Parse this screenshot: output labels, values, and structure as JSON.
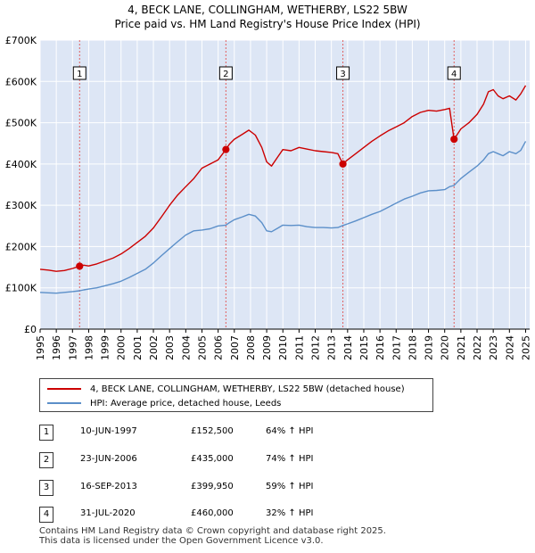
{
  "header": {
    "title_line1": "4, BECK LANE, COLLINGHAM, WETHERBY, LS22 5BW",
    "title_line2": "Price paid vs. HM Land Registry's House Price Index (HPI)"
  },
  "colors": {
    "property": "#cc0000",
    "hpi": "#5b8fc9",
    "shade": "#dde6f5",
    "grid": "#ffffff",
    "marker_line": "#e06060"
  },
  "chart_data": {
    "type": "line",
    "title": "4, BECK LANE, COLLINGHAM, WETHERBY, LS22 5BW — Price paid vs. HM Land Registry's House Price Index (HPI)",
    "xlim": [
      1995,
      2025.25
    ],
    "ylim": [
      0,
      700000
    ],
    "y_ticks": [
      0,
      100000,
      200000,
      300000,
      400000,
      500000,
      600000,
      700000
    ],
    "y_tick_labels": [
      "£0",
      "£100K",
      "£200K",
      "£300K",
      "£400K",
      "£500K",
      "£600K",
      "£700K"
    ],
    "x_ticks": [
      1995,
      1996,
      1997,
      1998,
      1999,
      2000,
      2001,
      2002,
      2003,
      2004,
      2005,
      2006,
      2007,
      2008,
      2009,
      2010,
      2011,
      2012,
      2013,
      2014,
      2015,
      2016,
      2017,
      2018,
      2019,
      2020,
      2021,
      2022,
      2023,
      2024,
      2025
    ],
    "grid": true,
    "series": [
      {
        "name": "4, BECK LANE, COLLINGHAM, WETHERBY, LS22 5BW (detached house)",
        "x": [
          1995,
          1995.5,
          1996,
          1996.5,
          1997,
          1997.44,
          1997.7,
          1998,
          1998.5,
          1999,
          1999.5,
          2000,
          2000.5,
          2001,
          2001.5,
          2002,
          2002.5,
          2003,
          2003.5,
          2004,
          2004.5,
          2005,
          2005.5,
          2006,
          2006.48,
          2006.7,
          2007,
          2007.5,
          2007.9,
          2008.3,
          2008.7,
          2009,
          2009.3,
          2009.7,
          2010,
          2010.5,
          2011,
          2011.5,
          2012,
          2012.5,
          2013,
          2013.4,
          2013.71,
          2014,
          2014.5,
          2015,
          2015.5,
          2016,
          2016.5,
          2017,
          2017.5,
          2018,
          2018.5,
          2019,
          2019.5,
          2020,
          2020.3,
          2020.58,
          2020.75,
          2021,
          2021.5,
          2022,
          2022.4,
          2022.7,
          2023,
          2023.3,
          2023.6,
          2024,
          2024.4,
          2024.7,
          2025
        ],
        "y": [
          145000,
          143000,
          140000,
          142000,
          147000,
          152500,
          155000,
          153000,
          158000,
          165000,
          172000,
          182000,
          195000,
          210000,
          225000,
          245000,
          272000,
          300000,
          325000,
          345000,
          365000,
          390000,
          400000,
          410000,
          435000,
          448000,
          460000,
          472000,
          482000,
          470000,
          440000,
          405000,
          395000,
          418000,
          435000,
          432000,
          440000,
          436000,
          432000,
          430000,
          428000,
          425000,
          399950,
          410000,
          425000,
          440000,
          455000,
          468000,
          480000,
          490000,
          500000,
          515000,
          525000,
          530000,
          528000,
          532000,
          535000,
          460000,
          470000,
          485000,
          500000,
          520000,
          545000,
          575000,
          580000,
          565000,
          558000,
          565000,
          555000,
          570000,
          590000
        ]
      },
      {
        "name": "HPI: Average price, detached house, Leeds",
        "x": [
          1995,
          1995.5,
          1996,
          1996.5,
          1997,
          1997.44,
          1997.7,
          1998,
          1998.5,
          1999,
          1999.5,
          2000,
          2000.5,
          2001,
          2001.5,
          2002,
          2002.5,
          2003,
          2003.5,
          2004,
          2004.5,
          2005,
          2005.5,
          2006,
          2006.48,
          2006.7,
          2007,
          2007.5,
          2007.9,
          2008.3,
          2008.7,
          2009,
          2009.3,
          2009.7,
          2010,
          2010.5,
          2011,
          2011.5,
          2012,
          2012.5,
          2013,
          2013.4,
          2013.71,
          2014,
          2014.5,
          2015,
          2015.5,
          2016,
          2016.5,
          2017,
          2017.5,
          2018,
          2018.5,
          2019,
          2019.5,
          2020,
          2020.3,
          2020.58,
          2020.75,
          2021,
          2021.5,
          2022,
          2022.4,
          2022.7,
          2023,
          2023.3,
          2023.6,
          2024,
          2024.4,
          2024.7,
          2025
        ],
        "y": [
          89000,
          88000,
          87000,
          89000,
          91000,
          93000,
          95000,
          97000,
          100000,
          105000,
          110000,
          116000,
          125000,
          135000,
          145000,
          160000,
          178000,
          195000,
          212000,
          228000,
          238000,
          240000,
          243000,
          250000,
          252000,
          258000,
          265000,
          272000,
          278000,
          274000,
          258000,
          238000,
          236000,
          245000,
          252000,
          251000,
          252000,
          248000,
          246000,
          246000,
          245000,
          246000,
          251000,
          255000,
          262000,
          270000,
          278000,
          285000,
          295000,
          305000,
          315000,
          322000,
          330000,
          335000,
          336000,
          338000,
          345000,
          348000,
          355000,
          365000,
          380000,
          395000,
          410000,
          425000,
          430000,
          425000,
          420000,
          430000,
          425000,
          433000,
          455000
        ]
      }
    ],
    "sales": [
      {
        "label": "1",
        "x": 1997.44,
        "y": 152500,
        "date": "10-JUN-1997",
        "price": "£152,500",
        "hpi": "64% ↑ HPI"
      },
      {
        "label": "2",
        "x": 2006.48,
        "y": 435000,
        "date": "23-JUN-2006",
        "price": "£435,000",
        "hpi": "74% ↑ HPI"
      },
      {
        "label": "3",
        "x": 2013.71,
        "y": 399950,
        "date": "16-SEP-2013",
        "price": "£399,950",
        "hpi": "59% ↑ HPI"
      },
      {
        "label": "4",
        "x": 2020.58,
        "y": 460000,
        "date": "31-JUL-2020",
        "price": "£460,000",
        "hpi": "32% ↑ HPI"
      }
    ]
  },
  "legend": {
    "property_label": "4, BECK LANE, COLLINGHAM, WETHERBY, LS22 5BW (detached house)",
    "hpi_label": "HPI: Average price, detached house, Leeds"
  },
  "table": [
    {
      "num": "1",
      "date": "10-JUN-1997",
      "price": "£152,500",
      "pct": "64% ↑ HPI"
    },
    {
      "num": "2",
      "date": "23-JUN-2006",
      "price": "£435,000",
      "pct": "74% ↑ HPI"
    },
    {
      "num": "3",
      "date": "16-SEP-2013",
      "price": "£399,950",
      "pct": "59% ↑ HPI"
    },
    {
      "num": "4",
      "date": "31-JUL-2020",
      "price": "£460,000",
      "pct": "32% ↑ HPI"
    }
  ],
  "footer": {
    "line1": "Contains HM Land Registry data © Crown copyright and database right 2025.",
    "line2": "This data is licensed under the Open Government Licence v3.0."
  }
}
